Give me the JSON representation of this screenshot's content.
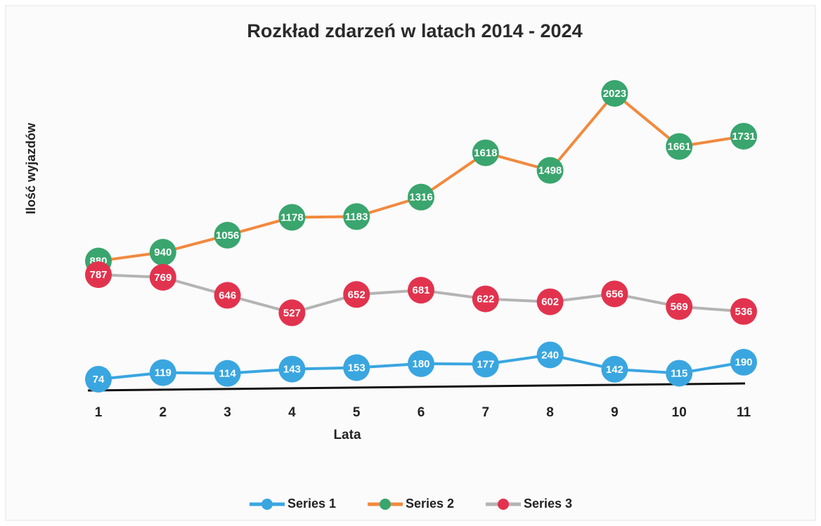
{
  "chart_data": {
    "type": "line",
    "title": "Rozkład zdarzeń w latach 2014 - 2024",
    "xlabel": "Lata",
    "ylabel": "Ilość wyjazdów",
    "categories": [
      "1",
      "2",
      "3",
      "4",
      "5",
      "6",
      "7",
      "8",
      "9",
      "10",
      "11"
    ],
    "series": [
      {
        "name": "Series 1",
        "color": "#3aa6e0",
        "line_color": "#3aa6e0",
        "values": [
          74,
          119,
          114,
          143,
          153,
          180,
          177,
          240,
          142,
          115,
          190
        ]
      },
      {
        "name": "Series 2",
        "color": "#3aa56e",
        "line_color": "#f2893e",
        "values": [
          880,
          940,
          1056,
          1178,
          1183,
          1316,
          1618,
          1498,
          2023,
          1661,
          1731
        ]
      },
      {
        "name": "Series 3",
        "color": "#e2334e",
        "line_color": "#b4b4b4",
        "values": [
          787,
          769,
          646,
          527,
          652,
          681,
          622,
          602,
          656,
          569,
          536
        ]
      }
    ],
    "legend": "bottom"
  }
}
